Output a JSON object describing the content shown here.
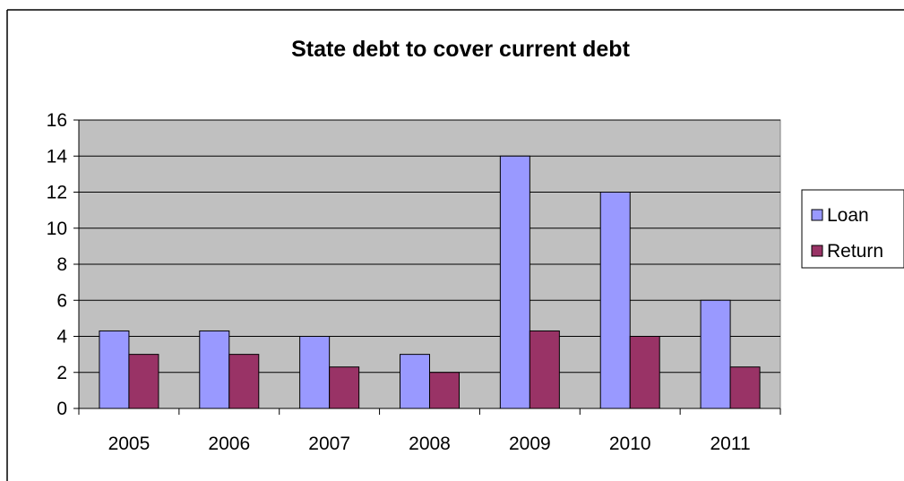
{
  "chart_data": {
    "type": "bar",
    "title": "State debt to cover current debt",
    "xlabel": "",
    "ylabel": "",
    "categories": [
      "2005",
      "2006",
      "2007",
      "2008",
      "2009",
      "2010",
      "2011"
    ],
    "series": [
      {
        "name": "Loan",
        "values": [
          4.3,
          4.3,
          4.0,
          3.0,
          14.0,
          12.0,
          6.0
        ]
      },
      {
        "name": "Return",
        "values": [
          3.0,
          3.0,
          2.3,
          2.0,
          4.3,
          4.0,
          2.3
        ]
      }
    ],
    "ylim": [
      0,
      16
    ],
    "yticks": [
      "0",
      "2",
      "4",
      "6",
      "8",
      "10",
      "12",
      "14",
      "16"
    ],
    "grid": true,
    "legend_position": "right",
    "colors": {
      "Loan": "#9999ff",
      "Return": "#993366",
      "plot_background": "#c0c0c0"
    }
  }
}
